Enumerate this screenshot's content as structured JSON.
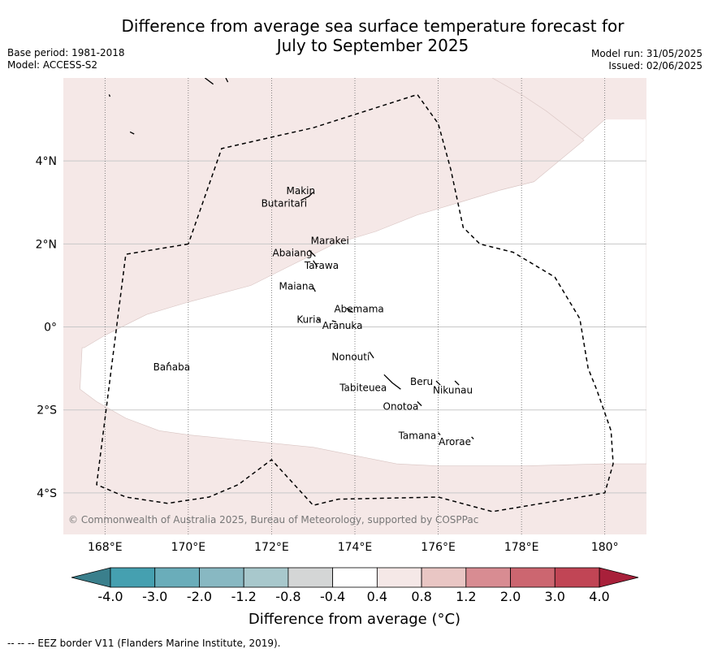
{
  "title": {
    "line1": "Difference from average sea surface temperature forecast for",
    "line2": "July to September 2025"
  },
  "meta_left": {
    "base_period": "Base period: 1981-2018",
    "model": "Model: ACCESS-S2"
  },
  "meta_right": {
    "model_run": "Model run: 31/05/2025",
    "issued": "Issued: 02/06/2025"
  },
  "map": {
    "lon_range": [
      167,
      181
    ],
    "lat_range": [
      -5,
      6
    ],
    "x_ticks": [
      {
        "lon": 168,
        "label": "168°E"
      },
      {
        "lon": 170,
        "label": "170°E"
      },
      {
        "lon": 172,
        "label": "172°E"
      },
      {
        "lon": 174,
        "label": "174°E"
      },
      {
        "lon": 176,
        "label": "176°E"
      },
      {
        "lon": 178,
        "label": "178°E"
      },
      {
        "lon": 180,
        "label": "180°"
      }
    ],
    "y_ticks": [
      {
        "lat": 4,
        "label": "4°N"
      },
      {
        "lat": 2,
        "label": "2°N"
      },
      {
        "lat": 0,
        "label": "0°"
      },
      {
        "lat": -2,
        "label": "2°S"
      },
      {
        "lat": -4,
        "label": "4°S"
      }
    ],
    "colors": {
      "warm_band": "#f5e8e7",
      "neutral": "#ffffff",
      "grid": "#c8c8c8",
      "eez": "#000000"
    },
    "places": [
      {
        "name": "Makin",
        "lon": 172.7,
        "lat": 3.2
      },
      {
        "name": "Butaritari",
        "lon": 172.3,
        "lat": 2.9
      },
      {
        "name": "Marakei",
        "lon": 173.4,
        "lat": 2.0
      },
      {
        "name": "Abaiang",
        "lon": 172.5,
        "lat": 1.7
      },
      {
        "name": "Tarawa",
        "lon": 173.2,
        "lat": 1.4
      },
      {
        "name": "Maiana",
        "lon": 172.6,
        "lat": 0.9
      },
      {
        "name": "Abemama",
        "lon": 174.1,
        "lat": 0.35
      },
      {
        "name": "Kuria",
        "lon": 172.9,
        "lat": 0.1
      },
      {
        "name": "Aranuka",
        "lon": 173.7,
        "lat": -0.05
      },
      {
        "name": "Nonouti",
        "lon": 173.9,
        "lat": -0.8
      },
      {
        "name": "Banaba",
        "lon": 169.6,
        "lat": -1.05
      },
      {
        "name": "Beru",
        "lon": 175.6,
        "lat": -1.4
      },
      {
        "name": "Tabiteuea",
        "lon": 174.2,
        "lat": -1.55
      },
      {
        "name": "Nikunau",
        "lon": 176.35,
        "lat": -1.6
      },
      {
        "name": "Onotoa",
        "lon": 175.1,
        "lat": -2.0
      },
      {
        "name": "Tamana",
        "lon": 175.5,
        "lat": -2.7
      },
      {
        "name": "Arorae",
        "lon": 176.4,
        "lat": -2.85
      }
    ],
    "copyright": "© Commonwealth of Australia 2025, Bureau of Meteorology, supported by COSPPac"
  },
  "colorbar": {
    "label": "Difference from average (°C)",
    "ticks": [
      "-4.0",
      "-3.0",
      "-2.0",
      "-1.2",
      "-0.8",
      "-0.4",
      "0.4",
      "0.8",
      "1.2",
      "2.0",
      "3.0",
      "4.0"
    ],
    "under_color": "#3a7f8c",
    "over_color": "#a8203a",
    "bin_colors": [
      "#45a0b0",
      "#6aadba",
      "#88b8c2",
      "#a8c8cc",
      "#d4d6d6",
      "#ffffff",
      "#f5e8e7",
      "#e9c6c4",
      "#d88c92",
      "#cc6670",
      "#c14555"
    ]
  },
  "footer": "-- -- -- EEZ border V11 (Flanders Marine Institute, 2019)."
}
